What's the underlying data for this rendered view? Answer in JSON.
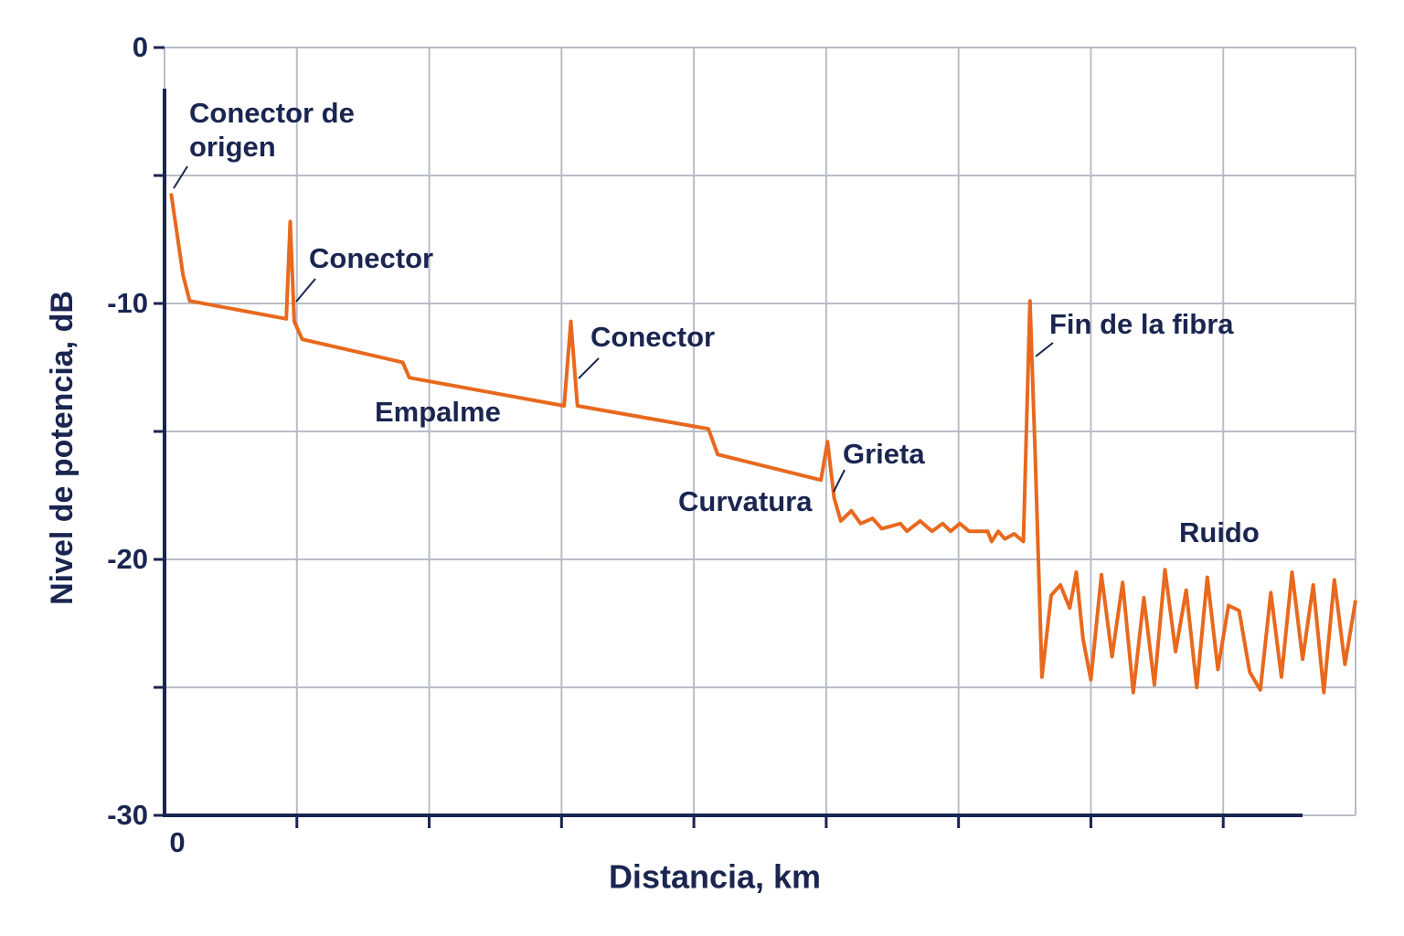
{
  "chart_data": {
    "type": "line",
    "color": "#e8691e",
    "xlabel": "Distancia, km",
    "ylabel": "Nivel de potencia, dB",
    "xlim": [
      0,
      9
    ],
    "xticks": [
      0
    ],
    "minor_xticks": [
      1,
      2,
      3,
      4,
      5,
      6,
      7,
      8,
      9
    ],
    "ylim": [
      -30,
      0
    ],
    "yticks": [
      0,
      -10,
      -20,
      -30
    ],
    "minor_yticks": [
      -5,
      -15,
      -25
    ],
    "grid": true,
    "annotations": [
      "Conector de origen",
      "Conector",
      "Empalme",
      "Conector",
      "Curvatura",
      "Grieta",
      "Fin de la fibra",
      "Ruido"
    ],
    "x": [
      0.05,
      0.14,
      0.19,
      0.92,
      0.95,
      0.98,
      1.04,
      1.8,
      1.85,
      3.02,
      3.07,
      3.12,
      4.11,
      4.18,
      4.96,
      5.01,
      5.06,
      5.11,
      5.19,
      5.26,
      5.35,
      5.42,
      5.56,
      5.61,
      5.71,
      5.8,
      5.88,
      5.94,
      6.01,
      6.08,
      6.22,
      6.25,
      6.3,
      6.35,
      6.42,
      6.49,
      6.54,
      6.58,
      6.63,
      6.7,
      6.77,
      6.84,
      6.89,
      6.94,
      7.0,
      7.08,
      7.16,
      7.24,
      7.32,
      7.4,
      7.48,
      7.56,
      7.64,
      7.72,
      7.8,
      7.88,
      7.96,
      8.04,
      8.12,
      8.2,
      8.28,
      8.36,
      8.44,
      8.52,
      8.6,
      8.68,
      8.76,
      8.84,
      8.92,
      9.0
    ],
    "values": [
      -5.7,
      -8.9,
      -9.9,
      -10.6,
      -6.8,
      -10.7,
      -11.4,
      -12.3,
      -12.9,
      -14.0,
      -10.7,
      -14.0,
      -14.9,
      -15.9,
      -16.9,
      -15.4,
      -17.6,
      -18.5,
      -18.1,
      -18.6,
      -18.4,
      -18.8,
      -18.6,
      -18.9,
      -18.5,
      -18.9,
      -18.6,
      -18.9,
      -18.6,
      -18.9,
      -18.9,
      -19.3,
      -18.9,
      -19.2,
      -19.0,
      -19.3,
      -9.9,
      -16.0,
      -24.6,
      -21.4,
      -21.0,
      -21.9,
      -20.5,
      -23.1,
      -24.7,
      -20.6,
      -23.8,
      -20.9,
      -25.2,
      -21.5,
      -24.9,
      -20.4,
      -23.6,
      -21.2,
      -25.0,
      -20.7,
      -24.3,
      -21.8,
      -22.0,
      -24.4,
      -25.1,
      -21.3,
      -24.6,
      -20.5,
      -23.9,
      -21.0,
      -25.2,
      -20.8,
      -24.1,
      -21.6
    ]
  }
}
